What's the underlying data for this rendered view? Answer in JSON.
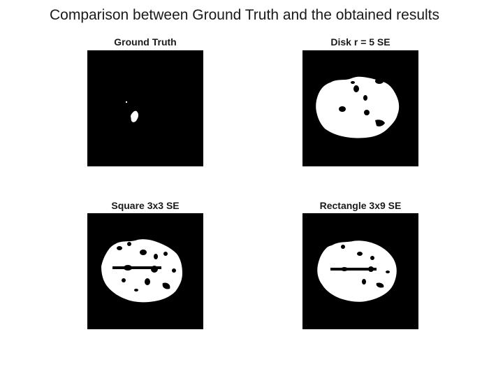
{
  "figure": {
    "title": "Comparison between Ground Truth and the obtained results"
  },
  "panels": [
    {
      "title": "Ground Truth",
      "background": "#000000",
      "foreground": "#ffffff"
    },
    {
      "title": "Disk r = 5 SE",
      "background": "#000000",
      "foreground": "#ffffff"
    },
    {
      "title": "Square 3x3 SE",
      "background": "#000000",
      "foreground": "#ffffff"
    },
    {
      "title": "Rectangle 3x9 SE",
      "background": "#000000",
      "foreground": "#ffffff"
    }
  ]
}
